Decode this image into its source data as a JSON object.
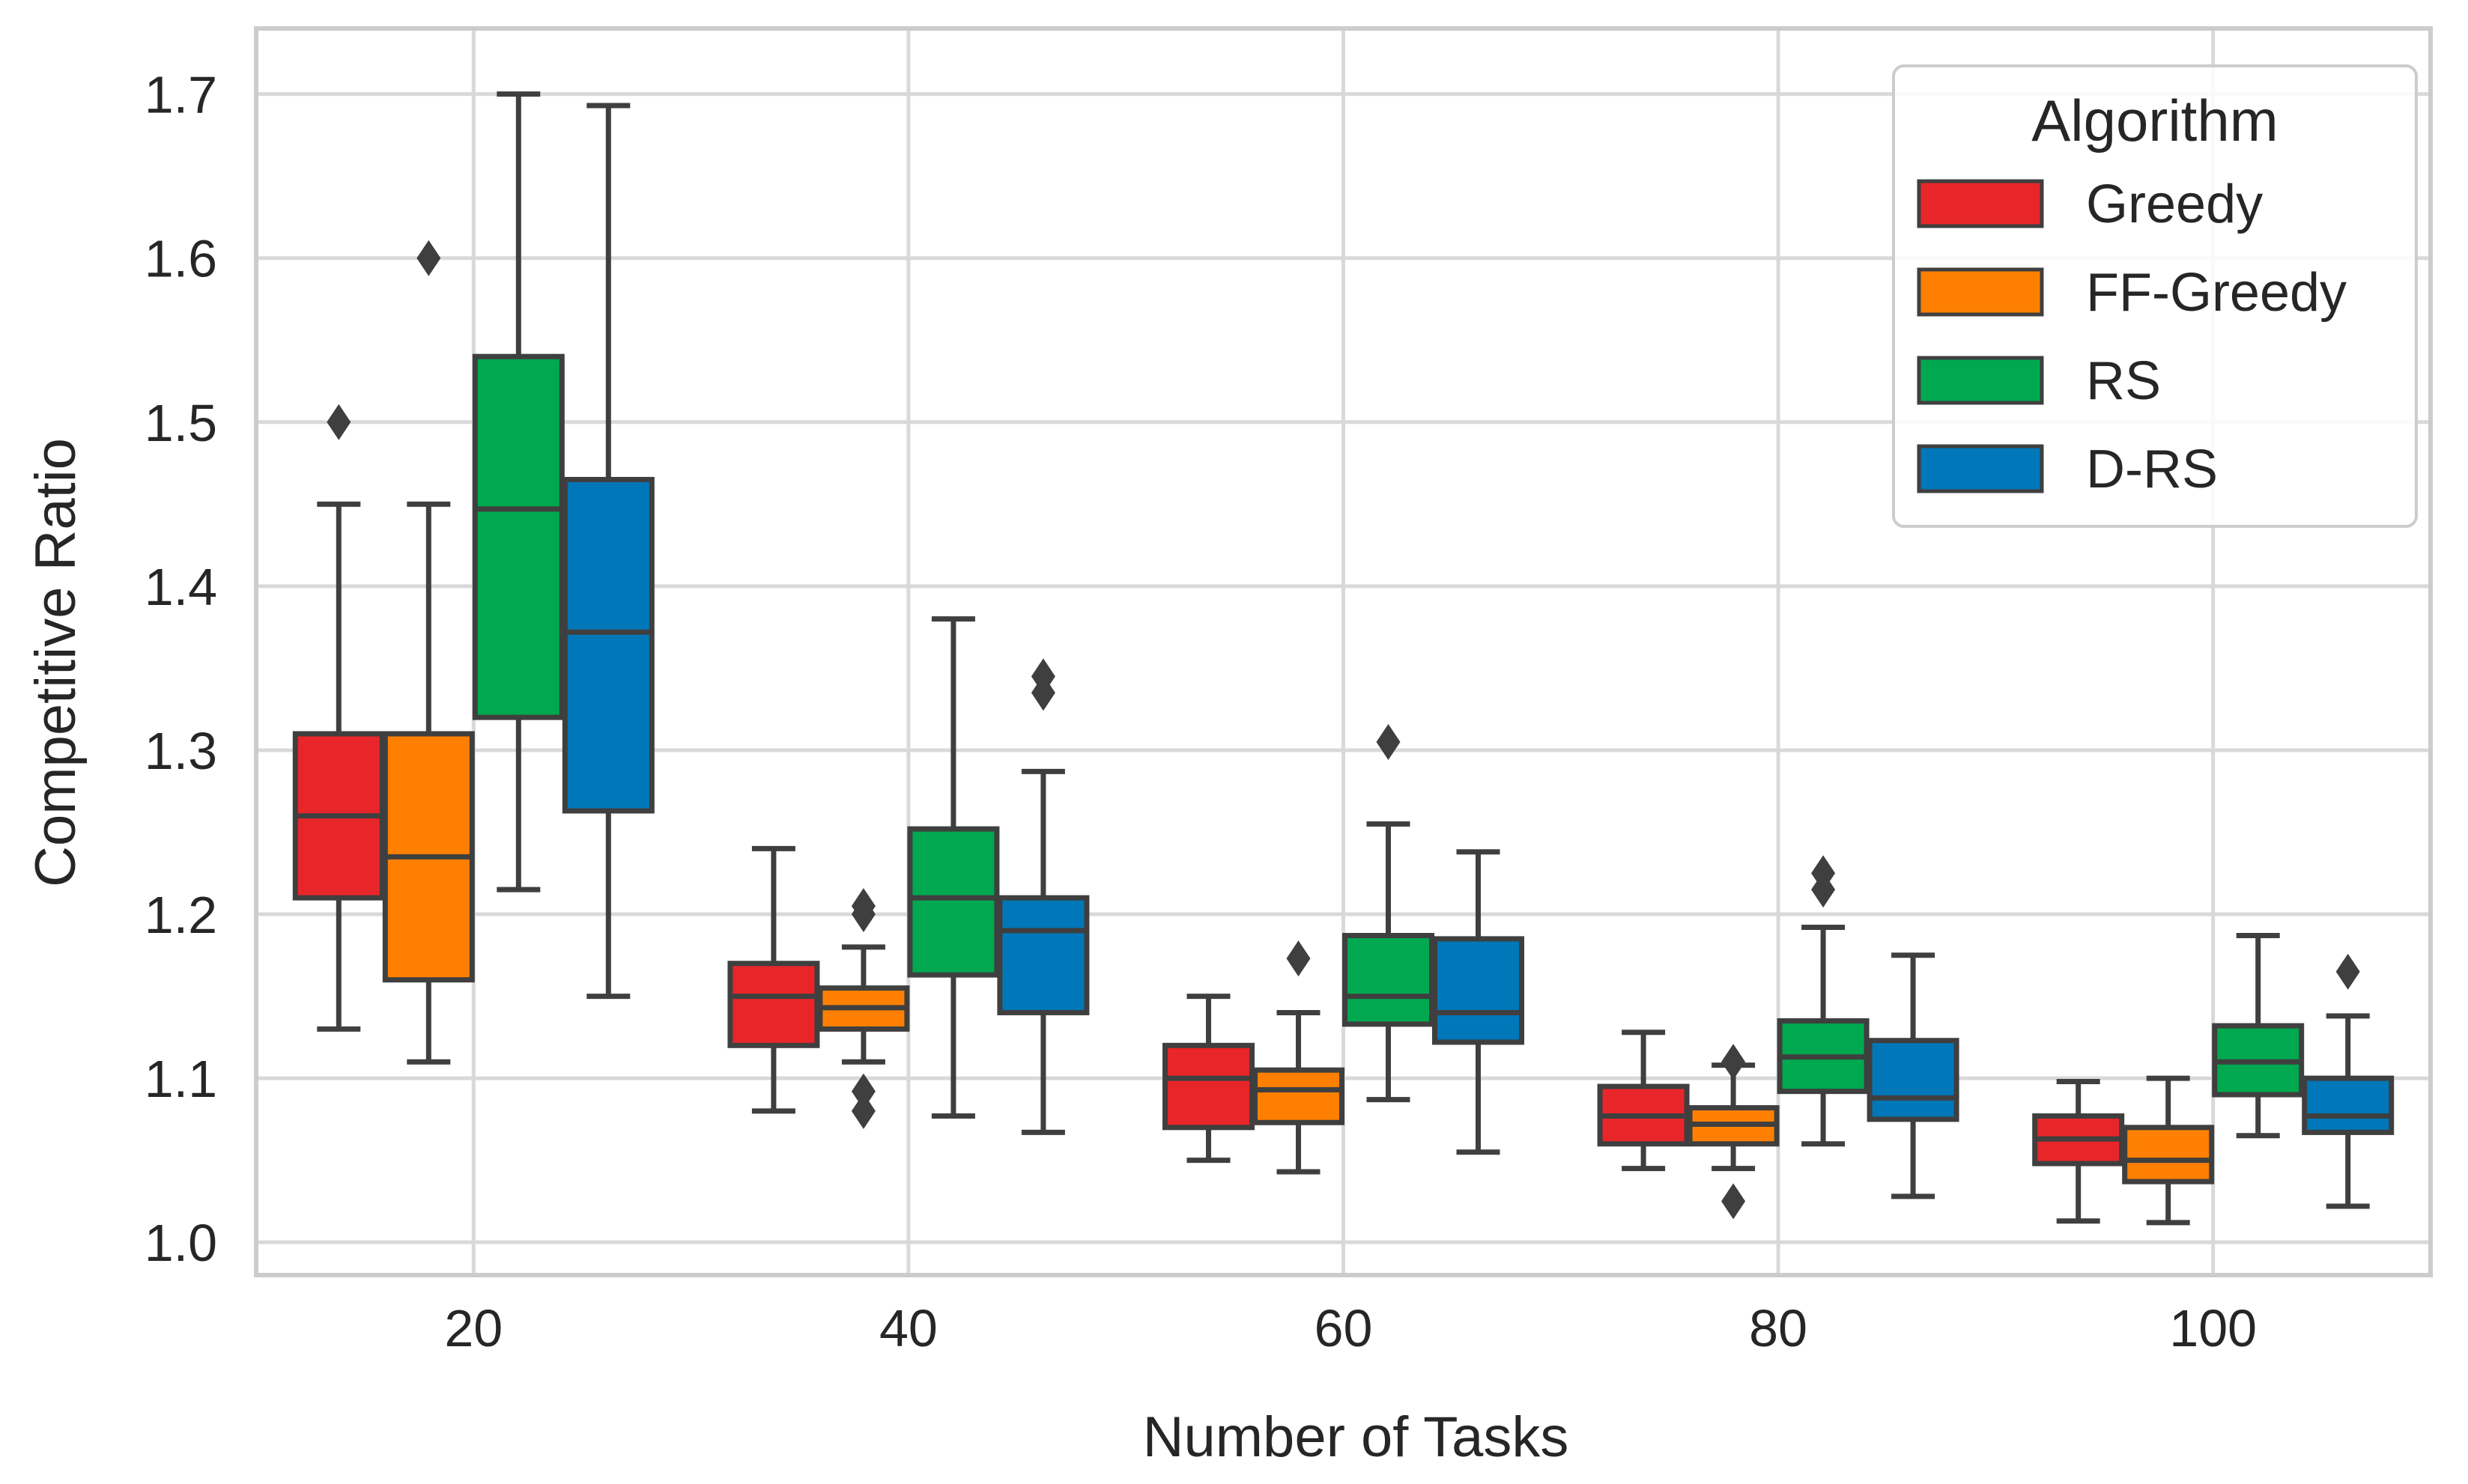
{
  "colors": {
    "greedy": "#e8262a",
    "ff_greedy": "#ff8000",
    "rs": "#00a84f",
    "d_rs": "#0077b8",
    "box_edge": "#3f3f3f",
    "grid": "#d9d9d9",
    "frame": "#cccccc"
  },
  "chart_data": {
    "type": "box",
    "xlabel": "Number of Tasks",
    "ylabel": "Competitive Ratio",
    "categories": [
      "20",
      "40",
      "60",
      "80",
      "100"
    ],
    "ylim": [
      0.98,
      1.74
    ],
    "yticks": [
      "1.0",
      "1.1",
      "1.2",
      "1.3",
      "1.4",
      "1.5",
      "1.6",
      "1.7"
    ],
    "legend": {
      "title": "Algorithm",
      "position": "top-right"
    },
    "series": [
      {
        "name": "Greedy",
        "color_key": "greedy",
        "boxes": [
          {
            "whisker_low": 1.13,
            "q1": 1.21,
            "median": 1.26,
            "q3": 1.31,
            "whisker_high": 1.45,
            "outliers": [
              1.5
            ]
          },
          {
            "whisker_low": 1.08,
            "q1": 1.12,
            "median": 1.15,
            "q3": 1.17,
            "whisker_high": 1.24,
            "outliers": []
          },
          {
            "whisker_low": 1.05,
            "q1": 1.07,
            "median": 1.1,
            "q3": 1.12,
            "whisker_high": 1.15,
            "outliers": []
          },
          {
            "whisker_low": 1.045,
            "q1": 1.06,
            "median": 1.077,
            "q3": 1.095,
            "whisker_high": 1.128,
            "outliers": []
          },
          {
            "whisker_low": 1.013,
            "q1": 1.048,
            "median": 1.063,
            "q3": 1.077,
            "whisker_high": 1.098,
            "outliers": []
          }
        ]
      },
      {
        "name": "FF-Greedy",
        "color_key": "ff_greedy",
        "boxes": [
          {
            "whisker_low": 1.11,
            "q1": 1.16,
            "median": 1.235,
            "q3": 1.31,
            "whisker_high": 1.45,
            "outliers": [
              1.6
            ]
          },
          {
            "whisker_low": 1.11,
            "q1": 1.13,
            "median": 1.143,
            "q3": 1.155,
            "whisker_high": 1.18,
            "outliers": [
              1.2,
              1.205,
              1.08,
              1.092
            ]
          },
          {
            "whisker_low": 1.043,
            "q1": 1.073,
            "median": 1.093,
            "q3": 1.105,
            "whisker_high": 1.14,
            "outliers": [
              1.173
            ]
          },
          {
            "whisker_low": 1.045,
            "q1": 1.06,
            "median": 1.072,
            "q3": 1.082,
            "whisker_high": 1.108,
            "outliers": [
              1.11,
              1.025
            ]
          },
          {
            "whisker_low": 1.012,
            "q1": 1.037,
            "median": 1.05,
            "q3": 1.07,
            "whisker_high": 1.1,
            "outliers": []
          }
        ]
      },
      {
        "name": "RS",
        "color_key": "rs",
        "boxes": [
          {
            "whisker_low": 1.215,
            "q1": 1.32,
            "median": 1.447,
            "q3": 1.54,
            "whisker_high": 1.7,
            "outliers": []
          },
          {
            "whisker_low": 1.077,
            "q1": 1.163,
            "median": 1.21,
            "q3": 1.252,
            "whisker_high": 1.38,
            "outliers": []
          },
          {
            "whisker_low": 1.087,
            "q1": 1.133,
            "median": 1.15,
            "q3": 1.187,
            "whisker_high": 1.255,
            "outliers": [
              1.305
            ]
          },
          {
            "whisker_low": 1.06,
            "q1": 1.092,
            "median": 1.113,
            "q3": 1.135,
            "whisker_high": 1.192,
            "outliers": [
              1.215,
              1.225
            ]
          },
          {
            "whisker_low": 1.065,
            "q1": 1.09,
            "median": 1.11,
            "q3": 1.132,
            "whisker_high": 1.187,
            "outliers": []
          }
        ]
      },
      {
        "name": "D-RS",
        "color_key": "d_rs",
        "boxes": [
          {
            "whisker_low": 1.15,
            "q1": 1.263,
            "median": 1.372,
            "q3": 1.465,
            "whisker_high": 1.693,
            "outliers": []
          },
          {
            "whisker_low": 1.067,
            "q1": 1.14,
            "median": 1.19,
            "q3": 1.21,
            "whisker_high": 1.287,
            "outliers": [
              1.335,
              1.345
            ]
          },
          {
            "whisker_low": 1.055,
            "q1": 1.122,
            "median": 1.14,
            "q3": 1.185,
            "whisker_high": 1.238,
            "outliers": []
          },
          {
            "whisker_low": 1.028,
            "q1": 1.075,
            "median": 1.088,
            "q3": 1.123,
            "whisker_high": 1.175,
            "outliers": []
          },
          {
            "whisker_low": 1.022,
            "q1": 1.067,
            "median": 1.077,
            "q3": 1.1,
            "whisker_high": 1.138,
            "outliers": [
              1.165
            ]
          }
        ]
      }
    ]
  }
}
